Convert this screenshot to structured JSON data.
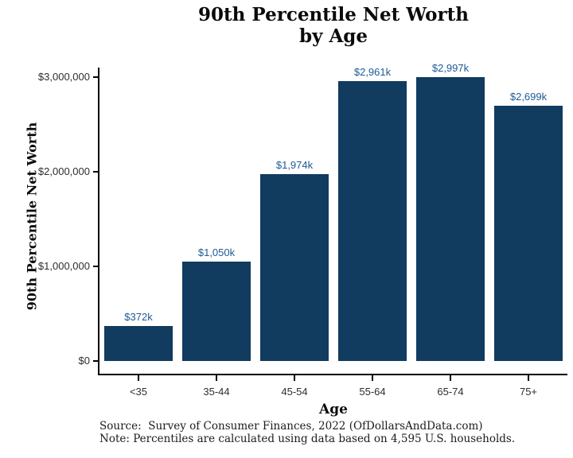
{
  "header": {
    "title_line1": "90th Percentile Net Worth",
    "title_line2": "by Age"
  },
  "axes": {
    "y_title": "90th Percentile Net Worth",
    "x_title": "Age",
    "y_ticks": [
      {
        "label": "$0",
        "value": 0
      },
      {
        "label": "$1,000,000",
        "value": 1000000
      },
      {
        "label": "$2,000,000",
        "value": 2000000
      },
      {
        "label": "$3,000,000",
        "value": 3000000
      }
    ]
  },
  "chart_data": {
    "type": "bar",
    "title": "90th Percentile Net Worth by Age",
    "xlabel": "Age",
    "ylabel": "90th Percentile Net Worth",
    "categories": [
      "<35",
      "35-44",
      "45-54",
      "55-64",
      "65-74",
      "75+"
    ],
    "values": [
      372000,
      1050000,
      1974000,
      2961000,
      2997000,
      2699000
    ],
    "value_labels": [
      "$372k",
      "$1,050k",
      "$1,974k",
      "$2,961k",
      "$2,997k",
      "$2,699k"
    ],
    "ylim": [
      0,
      3100000
    ],
    "grid": false,
    "legend": "none",
    "bar_color": "#113B5F",
    "value_label_color": "#1E5A96",
    "axis_color": "#000000"
  },
  "footer": {
    "source_line": "Source:  Survey of Consumer Finances, 2022 (OfDollarsAndData.com)",
    "note_line": "Note: Percentiles are calculated using data based on 4,595 U.S. households."
  }
}
